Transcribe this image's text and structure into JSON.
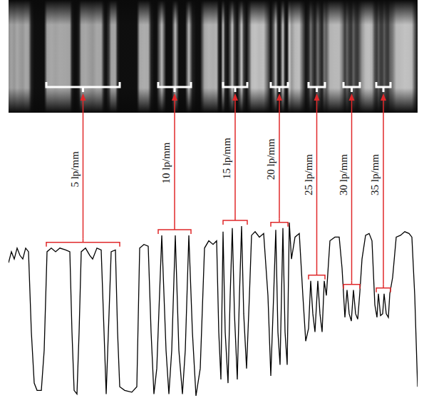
{
  "chart_data": {
    "type": "line",
    "x": [
      12,
      16,
      20,
      24,
      28,
      32,
      36,
      40,
      44,
      48,
      52,
      58,
      62,
      66,
      72,
      78,
      84,
      92,
      98,
      101,
      104,
      108,
      111,
      114,
      120,
      126,
      130,
      136,
      142,
      146,
      149,
      153,
      156,
      162,
      165,
      168,
      175,
      185,
      192,
      196,
      202,
      208,
      212,
      216,
      220,
      227,
      233,
      237,
      241,
      246,
      251,
      256,
      260,
      265,
      270,
      275,
      281,
      287,
      293,
      299,
      304,
      307,
      310,
      313,
      316,
      320,
      323,
      326,
      329,
      333,
      336,
      339,
      342,
      346,
      350,
      353,
      358,
      364,
      370,
      376,
      380,
      384,
      387,
      390,
      393,
      397,
      400,
      403,
      406,
      409,
      414,
      420,
      425,
      429,
      433,
      436,
      439,
      442,
      446,
      449,
      452,
      455,
      458,
      463,
      470,
      476,
      480,
      484,
      487,
      490,
      493,
      496,
      499,
      502,
      505,
      508,
      513,
      518,
      522,
      526,
      529,
      531,
      534,
      537,
      539,
      542,
      545,
      547,
      551,
      556,
      562,
      568,
      574,
      578,
      582,
      586
    ],
    "values": [
      78,
      84,
      80,
      86,
      82,
      80,
      86,
      84,
      40,
      12,
      8,
      8,
      30,
      84,
      86,
      84,
      86,
      85,
      84,
      40,
      8,
      6,
      40,
      84,
      86,
      82,
      80,
      86,
      85,
      40,
      6,
      50,
      84,
      85,
      40,
      10,
      8,
      7,
      10,
      86,
      88,
      87,
      40,
      6,
      20,
      93,
      30,
      6,
      30,
      93,
      30,
      6,
      30,
      93,
      40,
      5,
      20,
      86,
      90,
      88,
      90,
      40,
      14,
      95,
      40,
      12,
      60,
      97,
      50,
      14,
      60,
      98,
      50,
      20,
      60,
      93,
      95,
      92,
      94,
      60,
      16,
      60,
      96,
      40,
      22,
      97,
      40,
      22,
      100,
      80,
      92,
      94,
      60,
      35,
      42,
      68,
      50,
      40,
      68,
      50,
      40,
      68,
      60,
      90,
      92,
      92,
      75,
      48,
      63,
      50,
      46,
      63,
      50,
      47,
      62,
      80,
      93,
      94,
      90,
      55,
      48,
      61,
      49,
      50,
      61,
      50,
      48,
      61,
      70,
      92,
      93,
      95,
      94,
      92,
      60,
      10
    ],
    "color": "#000000",
    "xlim": [
      12,
      586
    ],
    "ylim": [
      5,
      100
    ],
    "tick_labels": false,
    "grid": false,
    "annotations": [
      {
        "label": "5 lp/mm",
        "x_range": [
          65,
          168
        ]
      },
      {
        "label": "10 lp/mm",
        "x_range": [
          222,
          268
        ]
      },
      {
        "label": "15 lp/mm",
        "x_range": [
          313,
          347
        ]
      },
      {
        "label": "20 lp/mm",
        "x_range": [
          380,
          404
        ]
      },
      {
        "label": "25 lp/mm",
        "x_range": [
          433,
          456
        ]
      },
      {
        "label": "30 lp/mm",
        "x_range": [
          482,
          505
        ]
      },
      {
        "label": "35 lp/mm",
        "x_range": [
          528,
          548
        ]
      }
    ]
  }
}
